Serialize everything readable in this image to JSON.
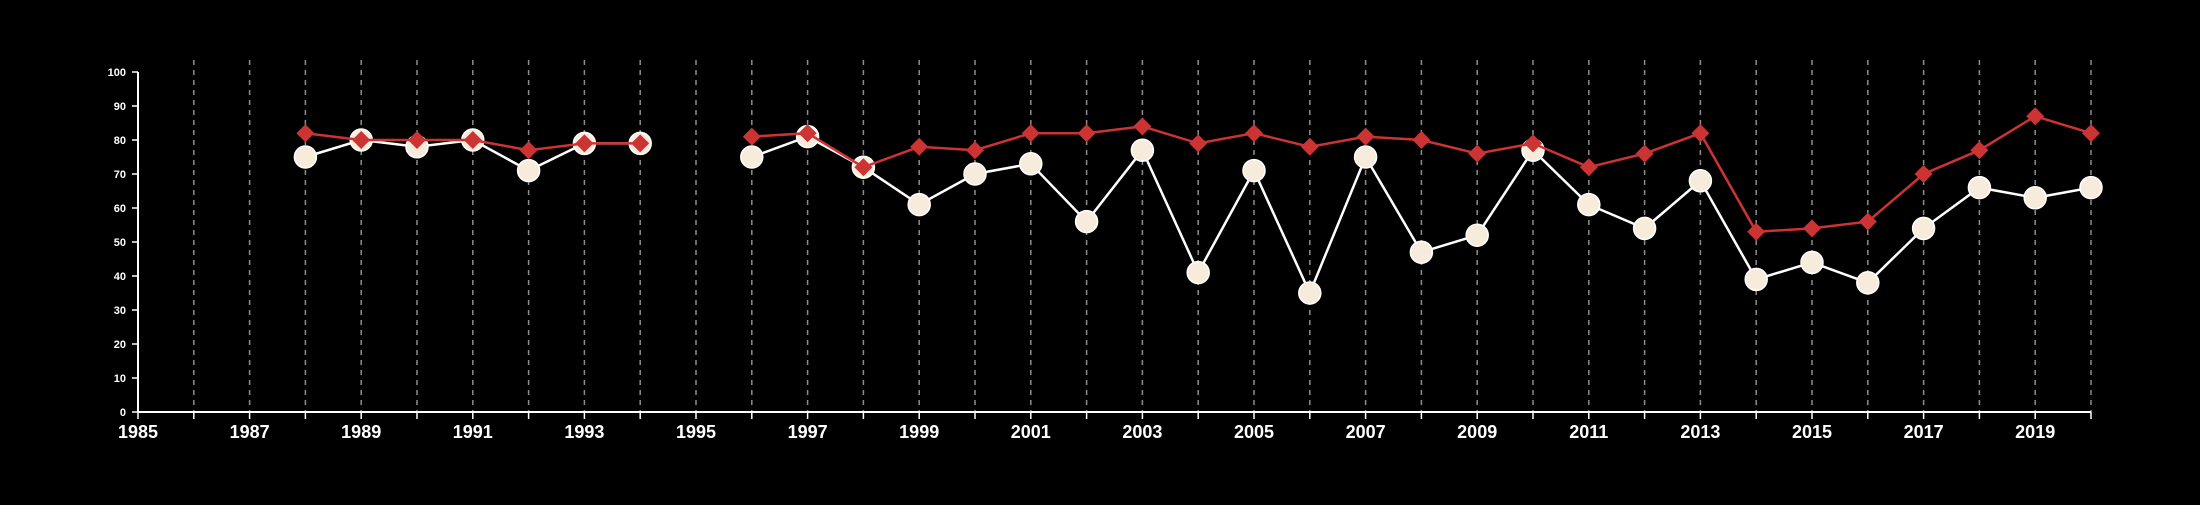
{
  "colors": {
    "background": "#000000",
    "axis": "#ffffff",
    "grid": "#bdbdbd",
    "series_light": "#f7ebdc",
    "series_light_line": "#ffffff",
    "series_red": "#cc3333"
  },
  "chart_data": {
    "type": "line",
    "title": "",
    "xlabel": "",
    "ylabel": "",
    "xlim": [
      1985,
      2020
    ],
    "ylim": [
      0,
      100
    ],
    "x_ticks": [
      1985,
      1987,
      1989,
      1991,
      1993,
      1995,
      1997,
      1999,
      2001,
      2003,
      2005,
      2007,
      2009,
      2011,
      2013,
      2015,
      2017,
      2019
    ],
    "y_ticks": [
      0,
      10,
      20,
      30,
      40,
      50,
      60,
      70,
      80,
      90,
      100
    ],
    "grid": "vertical dashed lines at every year",
    "legend": "none",
    "x": [
      1988,
      1989,
      1990,
      1991,
      1992,
      1993,
      1994,
      1996,
      1997,
      1998,
      1999,
      2000,
      2001,
      2002,
      2003,
      2004,
      2005,
      2006,
      2007,
      2008,
      2009,
      2010,
      2011,
      2012,
      2013,
      2014,
      2015,
      2016,
      2017,
      2018,
      2019,
      2020
    ],
    "series": [
      {
        "marker": "diamond",
        "color": "#cc3333",
        "values": [
          82,
          80,
          80,
          80,
          77,
          79,
          79,
          81,
          82,
          72,
          78,
          77,
          82,
          82,
          84,
          79,
          82,
          78,
          81,
          80,
          76,
          79,
          72,
          76,
          82,
          53,
          54,
          56,
          70,
          77,
          87,
          82
        ]
      },
      {
        "marker": "circle",
        "color": "#f7ebdc",
        "values": [
          75,
          80,
          78,
          80,
          71,
          79,
          79,
          75,
          81,
          72,
          61,
          70,
          73,
          56,
          77,
          41,
          71,
          35,
          75,
          47,
          52,
          77,
          61,
          54,
          68,
          39,
          44,
          38,
          54,
          66,
          63,
          66
        ]
      }
    ]
  }
}
